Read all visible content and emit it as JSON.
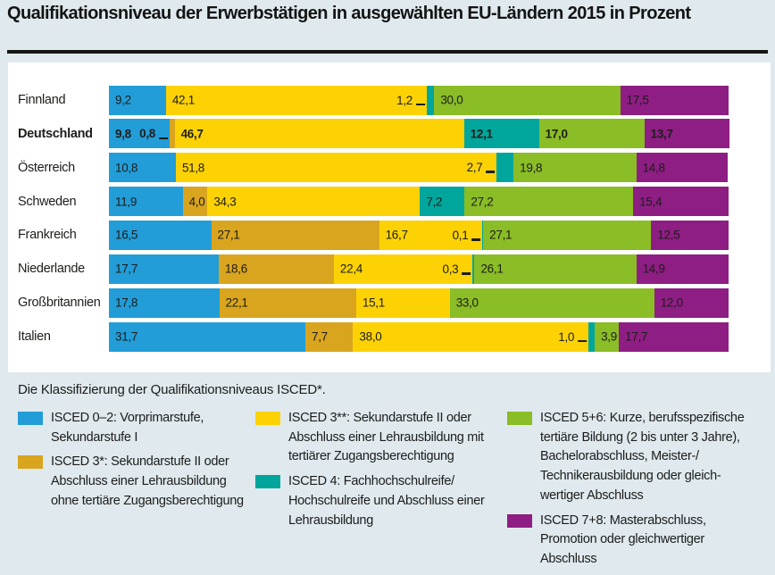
{
  "title": "Qualifikationsniveau der Erwerbstätigen in ausgewählten EU-Ländern 2015 in Prozent",
  "legend_note": "Die Klassifizierung der Qualifikationsniveaus ISCED*.",
  "colors": {
    "blue": "#229dd8",
    "ochre": "#d9a51e",
    "yellow": "#fdd205",
    "teal": "#00a69c",
    "green": "#8abd26",
    "purple": "#8e1e83",
    "background": "#dfe9ee",
    "panel": "#ffffff",
    "ink": "#1d1d1b"
  },
  "chart_data": {
    "type": "bar",
    "stacked": true,
    "orientation": "horizontal",
    "unit": "%",
    "x_axis": {
      "min": 0,
      "max": 100,
      "visible": false
    },
    "grid": false,
    "categories": [
      "Finnland",
      "Deutschland",
      "Österreich",
      "Schweden",
      "Frankreich",
      "Niederlande",
      "Großbritannien",
      "Italien"
    ],
    "series_names": {
      "blue": "ISCED 0–2: Vorprimarstufe, Sekundarstufe I",
      "ochre": "ISCED 3*: Sekundarstufe II oder Abschluss einer Lehrausbildung ohne tertiäre Zugangsberechtigung",
      "yellow": "ISCED 3**: Sekundarstufe II oder Abschluss einer Lehrausbildung mit tertiärer Zugangsberechtigung",
      "teal": "ISCED 4: Fachhochschulreife/Hochschulreife und Abschluss einer Lehrausbildung",
      "green": "ISCED 5+6: Kurze, berufsspezifische tertiäre Bildung (2 bis unter 3 Jahre), Bachelorabschluss, Meister-/Technikerausbildung oder gleichwertiger Abschluss",
      "purple": "ISCED 7+8: Masterabschluss, Promotion oder gleichwertiger Abschluss"
    },
    "rows": [
      {
        "country": "Finnland",
        "bold": false,
        "segments": [
          {
            "key": "blue",
            "value": 9.2,
            "label": "9,2",
            "label_pos": "inside"
          },
          {
            "key": "yellow",
            "value": 42.1,
            "label": "42,1",
            "label_pos": "inside"
          },
          {
            "key": "teal",
            "value": 1.2,
            "label": "1,2",
            "label_pos": "leader"
          },
          {
            "key": "green",
            "value": 30.0,
            "label": "30,0",
            "label_pos": "inside"
          },
          {
            "key": "purple",
            "value": 17.5,
            "label": "17,5",
            "label_pos": "inside"
          }
        ]
      },
      {
        "country": "Deutschland",
        "bold": true,
        "segments": [
          {
            "key": "blue",
            "value": 9.8,
            "label": "9,8",
            "label_pos": "inside"
          },
          {
            "key": "ochre",
            "value": 0.8,
            "label": "0,8",
            "label_pos": "leader"
          },
          {
            "key": "yellow",
            "value": 46.7,
            "label": "46,7",
            "label_pos": "inside"
          },
          {
            "key": "teal",
            "value": 12.1,
            "label": "12,1",
            "label_pos": "inside"
          },
          {
            "key": "green",
            "value": 17.0,
            "label": "17,0",
            "label_pos": "inside"
          },
          {
            "key": "purple",
            "value": 13.7,
            "label": "13,7",
            "label_pos": "inside"
          }
        ]
      },
      {
        "country": "Österreich",
        "bold": false,
        "segments": [
          {
            "key": "blue",
            "value": 10.8,
            "label": "10,8",
            "label_pos": "inside"
          },
          {
            "key": "yellow",
            "value": 51.8,
            "label": "51,8",
            "label_pos": "inside"
          },
          {
            "key": "teal",
            "value": 2.7,
            "label": "2,7",
            "label_pos": "leader"
          },
          {
            "key": "green",
            "value": 19.8,
            "label": "19,8",
            "label_pos": "inside"
          },
          {
            "key": "purple",
            "value": 14.8,
            "label": "14,8",
            "label_pos": "inside"
          }
        ]
      },
      {
        "country": "Schweden",
        "bold": false,
        "segments": [
          {
            "key": "blue",
            "value": 11.9,
            "label": "11,9",
            "label_pos": "inside"
          },
          {
            "key": "ochre",
            "value": 4.0,
            "label": "4,0",
            "label_pos": "inside"
          },
          {
            "key": "yellow",
            "value": 34.3,
            "label": "34,3",
            "label_pos": "inside"
          },
          {
            "key": "teal",
            "value": 7.2,
            "label": "7,2",
            "label_pos": "inside"
          },
          {
            "key": "green",
            "value": 27.2,
            "label": "27,2",
            "label_pos": "inside"
          },
          {
            "key": "purple",
            "value": 15.4,
            "label": "15,4",
            "label_pos": "inside"
          }
        ]
      },
      {
        "country": "Frankreich",
        "bold": false,
        "segments": [
          {
            "key": "blue",
            "value": 16.5,
            "label": "16,5",
            "label_pos": "inside"
          },
          {
            "key": "ochre",
            "value": 27.1,
            "label": "27,1",
            "label_pos": "inside"
          },
          {
            "key": "yellow",
            "value": 16.7,
            "label": "16,7",
            "label_pos": "inside"
          },
          {
            "key": "teal",
            "value": 0.1,
            "label": "0,1",
            "label_pos": "leader"
          },
          {
            "key": "green",
            "value": 27.1,
            "label": "27,1",
            "label_pos": "inside"
          },
          {
            "key": "purple",
            "value": 12.5,
            "label": "12,5",
            "label_pos": "inside"
          }
        ]
      },
      {
        "country": "Niederlande",
        "bold": false,
        "segments": [
          {
            "key": "blue",
            "value": 17.7,
            "label": "17,7",
            "label_pos": "inside"
          },
          {
            "key": "ochre",
            "value": 18.6,
            "label": "18,6",
            "label_pos": "inside"
          },
          {
            "key": "yellow",
            "value": 22.4,
            "label": "22,4",
            "label_pos": "inside"
          },
          {
            "key": "teal",
            "value": 0.3,
            "label": "0,3",
            "label_pos": "leader"
          },
          {
            "key": "green",
            "value": 26.1,
            "label": "26,1",
            "label_pos": "inside"
          },
          {
            "key": "purple",
            "value": 14.9,
            "label": "14,9",
            "label_pos": "inside"
          }
        ]
      },
      {
        "country": "Großbritannien",
        "bold": false,
        "segments": [
          {
            "key": "blue",
            "value": 17.8,
            "label": "17,8",
            "label_pos": "inside"
          },
          {
            "key": "ochre",
            "value": 22.1,
            "label": "22,1",
            "label_pos": "inside"
          },
          {
            "key": "yellow",
            "value": 15.1,
            "label": "15,1",
            "label_pos": "inside"
          },
          {
            "key": "green",
            "value": 33.0,
            "label": "33,0",
            "label_pos": "inside"
          },
          {
            "key": "purple",
            "value": 12.0,
            "label": "12,0",
            "label_pos": "inside"
          }
        ]
      },
      {
        "country": "Italien",
        "bold": false,
        "segments": [
          {
            "key": "blue",
            "value": 31.7,
            "label": "31,7",
            "label_pos": "inside"
          },
          {
            "key": "ochre",
            "value": 7.7,
            "label": "7,7",
            "label_pos": "inside"
          },
          {
            "key": "yellow",
            "value": 38.0,
            "label": "38,0",
            "label_pos": "inside"
          },
          {
            "key": "teal",
            "value": 1.0,
            "label": "1,0",
            "label_pos": "leader"
          },
          {
            "key": "green",
            "value": 3.9,
            "label": "3,9",
            "label_pos": "inside"
          },
          {
            "key": "purple",
            "value": 17.7,
            "label": "17,7",
            "label_pos": "inside"
          }
        ]
      }
    ]
  },
  "legend": {
    "columns": [
      {
        "items": [
          {
            "key": "blue",
            "lines": [
              "ISCED 0–2: Vorprimarstufe,",
              "Sekundarstufe I"
            ]
          },
          {
            "key": "ochre",
            "lines": [
              "ISCED 3*: Sekundarstufe II oder",
              "Abschluss einer Lehrausbildung",
              "ohne tertiäre Zugangsberechtigung"
            ]
          }
        ]
      },
      {
        "items": [
          {
            "key": "yellow",
            "lines": [
              "ISCED 3**: Sekundarstufe II oder",
              "Abschluss einer Lehrausbildung mit",
              "tertiärer Zugangsberechtigung"
            ]
          },
          {
            "key": "teal",
            "lines": [
              "ISCED 4: Fachhochschulreife/",
              "Hochschulreife und Abschluss einer",
              "Lehrausbildung"
            ]
          }
        ]
      },
      {
        "items": [
          {
            "key": "green",
            "lines": [
              "ISCED 5+6: Kurze, berufsspezifische",
              "tertiäre Bildung (2 bis unter 3 Jahre),",
              "Bachelorabschluss, Meister-/",
              "Technikerausbildung oder gleich-",
              "wertiger Abschluss"
            ]
          },
          {
            "key": "purple",
            "lines": [
              "ISCED 7+8: Masterabschluss,",
              "Promotion oder gleichwertiger",
              "Abschluss"
            ]
          }
        ]
      }
    ]
  }
}
